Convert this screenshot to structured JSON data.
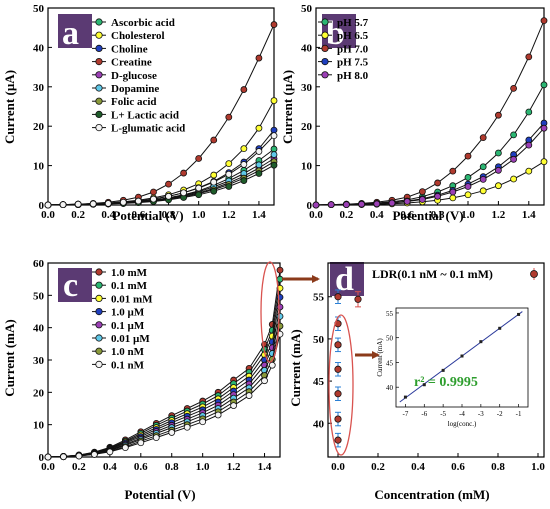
{
  "colors": {
    "panel_letter_bg": "#5b3a73",
    "ellipse": "#d9534f",
    "arrow": "#8b3a1a",
    "fit_line": "#2b3a9b",
    "r2_text": "#2e9e2e"
  },
  "chart_data": [
    {
      "panel": "a",
      "type": "line",
      "xlabel": "Potential (V)",
      "ylabel": "Current (µA)",
      "xlim": [
        0.0,
        1.5
      ],
      "ylim": [
        0,
        50
      ],
      "xticks": [
        "0.0",
        "0.2",
        "0.4",
        "0.6",
        "0.8",
        "1.0",
        "1.2",
        "1.4"
      ],
      "yticks": [
        "0",
        "10",
        "20",
        "30",
        "40",
        "50"
      ],
      "legend_position": "top-left",
      "x": [
        0.0,
        0.1,
        0.2,
        0.3,
        0.4,
        0.5,
        0.6,
        0.7,
        0.8,
        0.9,
        1.0,
        1.1,
        1.2,
        1.3,
        1.4,
        1.5
      ],
      "series": [
        {
          "name": "Ascorbic acid",
          "color": "#2bb673",
          "values": [
            0,
            0.1,
            0.1,
            0.2,
            0.3,
            0.5,
            0.8,
            1.2,
            1.8,
            2.6,
            3.6,
            5.0,
            6.7,
            8.8,
            11.3,
            14.2
          ]
        },
        {
          "name": "Cholesterol",
          "color": "#ffff33",
          "values": [
            0,
            0.1,
            0.2,
            0.3,
            0.5,
            0.8,
            1.2,
            1.8,
            2.6,
            3.8,
            5.4,
            7.6,
            10.5,
            14.3,
            19.5,
            26.5
          ]
        },
        {
          "name": "Choline",
          "color": "#1f3fbf",
          "values": [
            0,
            0.1,
            0.2,
            0.3,
            0.4,
            0.6,
            1.0,
            1.5,
            2.2,
            3.1,
            4.4,
            6.0,
            8.2,
            10.9,
            14.3,
            19.0
          ]
        },
        {
          "name": "Creatine",
          "color": "#b03a2e",
          "values": [
            0,
            0.1,
            0.2,
            0.4,
            0.7,
            1.2,
            2.0,
            3.3,
            5.3,
            8.1,
            11.8,
            16.5,
            22.3,
            29.3,
            37.3,
            45.8
          ]
        },
        {
          "name": "D-glucose",
          "color": "#9b3fb5",
          "values": [
            0,
            0.1,
            0.1,
            0.2,
            0.3,
            0.5,
            0.8,
            1.1,
            1.6,
            2.3,
            3.1,
            4.2,
            5.6,
            7.3,
            9.4,
            11.8
          ]
        },
        {
          "name": "Dopamine",
          "color": "#5fc8e8",
          "values": [
            0,
            0.1,
            0.1,
            0.2,
            0.3,
            0.5,
            0.8,
            1.2,
            1.8,
            2.5,
            3.4,
            4.6,
            6.1,
            8.0,
            10.2,
            12.8
          ]
        },
        {
          "name": "Folic acid",
          "color": "#8a9a3a",
          "values": [
            0,
            0.1,
            0.1,
            0.2,
            0.3,
            0.4,
            0.7,
            1.0,
            1.5,
            2.1,
            2.9,
            3.9,
            5.2,
            6.8,
            8.7,
            11.0
          ]
        },
        {
          "name": "L+ Lactic acid",
          "color": "#1e5c2a",
          "values": [
            0,
            0.1,
            0.1,
            0.2,
            0.3,
            0.4,
            0.6,
            0.9,
            1.3,
            1.9,
            2.6,
            3.5,
            4.7,
            6.2,
            8.0,
            10.1
          ]
        },
        {
          "name": "L-glumatic acid",
          "color": "#f4f4f4",
          "values": [
            0,
            0.1,
            0.2,
            0.3,
            0.4,
            0.7,
            1.0,
            1.5,
            2.2,
            3.1,
            4.3,
            5.8,
            7.8,
            10.3,
            13.6,
            17.6
          ]
        }
      ]
    },
    {
      "panel": "b",
      "type": "line",
      "xlabel": "Potential (V)",
      "ylabel": "Current (µA)",
      "xlim": [
        0.0,
        1.5
      ],
      "ylim": [
        0,
        50
      ],
      "xticks": [
        "0.0",
        "0.2",
        "0.4",
        "0.6",
        "0.8",
        "1.0",
        "1.2",
        "1.4"
      ],
      "yticks": [
        "0",
        "10",
        "20",
        "30",
        "40",
        "50"
      ],
      "legend_position": "top-left",
      "x": [
        0.0,
        0.1,
        0.2,
        0.3,
        0.4,
        0.5,
        0.6,
        0.7,
        0.8,
        0.9,
        1.0,
        1.1,
        1.2,
        1.3,
        1.4,
        1.5
      ],
      "series": [
        {
          "name": "pH 5.7",
          "color": "#2bb673",
          "values": [
            0,
            0.1,
            0.2,
            0.3,
            0.5,
            0.8,
            1.3,
            2.1,
            3.3,
            4.9,
            7.0,
            9.7,
            13.2,
            17.8,
            23.6,
            30.5
          ]
        },
        {
          "name": "pH 6.5",
          "color": "#ffff33",
          "values": [
            0,
            0.1,
            0.1,
            0.1,
            0.2,
            0.3,
            0.5,
            0.8,
            1.2,
            1.8,
            2.6,
            3.6,
            4.9,
            6.6,
            8.6,
            11.0
          ]
        },
        {
          "name": "pH 7.0",
          "color": "#b03a2e",
          "values": [
            0,
            0.1,
            0.2,
            0.4,
            0.7,
            1.2,
            2.0,
            3.4,
            5.6,
            8.6,
            12.4,
            17.1,
            22.8,
            29.6,
            37.6,
            46.8
          ]
        },
        {
          "name": "pH 7.5",
          "color": "#1f3fbf",
          "values": [
            0,
            0.1,
            0.1,
            0.2,
            0.4,
            0.6,
            1.0,
            1.6,
            2.5,
            3.7,
            5.3,
            7.2,
            9.7,
            12.8,
            16.5,
            20.8
          ]
        },
        {
          "name": "pH 8.0",
          "color": "#9b3fb5",
          "values": [
            0,
            0.1,
            0.1,
            0.2,
            0.3,
            0.5,
            0.9,
            1.4,
            2.2,
            3.3,
            4.7,
            6.5,
            8.8,
            11.6,
            15.2,
            19.5
          ]
        }
      ]
    },
    {
      "panel": "c",
      "type": "line",
      "xlabel": "Potential (V)",
      "ylabel": "Current (mA)",
      "xlim": [
        0.0,
        1.5
      ],
      "ylim": [
        0,
        60
      ],
      "xticks": [
        "0.0",
        "0.2",
        "0.4",
        "0.6",
        "0.8",
        "1.0",
        "1.2",
        "1.4"
      ],
      "yticks": [
        "0",
        "10",
        "20",
        "30",
        "40",
        "50",
        "60"
      ],
      "legend_position": "top-left",
      "x": [
        0.0,
        0.1,
        0.2,
        0.3,
        0.4,
        0.5,
        0.6,
        0.7,
        0.8,
        0.9,
        1.0,
        1.1,
        1.2,
        1.3,
        1.4,
        1.45,
        1.5
      ],
      "series": [
        {
          "name": "1.0 mM",
          "color": "#b03a2e",
          "values": [
            0,
            0.2,
            0.6,
            1.5,
            3.0,
            5.3,
            7.8,
            10.4,
            12.8,
            15.0,
            17.3,
            20.0,
            23.8,
            27.4,
            34.8,
            41.0,
            57.8
          ]
        },
        {
          "name": "0.1 mM",
          "color": "#2bb673",
          "values": [
            0,
            0.2,
            0.6,
            1.4,
            2.8,
            4.9,
            7.3,
            9.8,
            12.0,
            14.2,
            16.4,
            19.0,
            22.7,
            26.2,
            33.2,
            39.2,
            55.0
          ]
        },
        {
          "name": "0.01 mM",
          "color": "#ffff33",
          "values": [
            0,
            0.2,
            0.5,
            1.3,
            2.6,
            4.6,
            6.8,
            9.1,
            11.3,
            13.4,
            15.5,
            18.0,
            21.5,
            25.0,
            31.6,
            37.4,
            52.2
          ]
        },
        {
          "name": "1.0 µM",
          "color": "#1f3fbf",
          "values": [
            0,
            0.2,
            0.5,
            1.2,
            2.4,
            4.3,
            6.3,
            8.5,
            10.6,
            12.6,
            14.6,
            17.0,
            20.4,
            23.8,
            30.0,
            35.6,
            49.4
          ]
        },
        {
          "name": "0.1 µM",
          "color": "#9b3fb5",
          "values": [
            0,
            0.1,
            0.4,
            1.1,
            2.2,
            3.9,
            5.8,
            7.9,
            9.8,
            11.7,
            13.7,
            16.0,
            19.3,
            22.6,
            28.4,
            33.8,
            46.4
          ]
        },
        {
          "name": "0.01 µM",
          "color": "#5fc8e8",
          "values": [
            0,
            0.1,
            0.4,
            1.0,
            2.0,
            3.6,
            5.4,
            7.3,
            9.1,
            10.9,
            12.8,
            15.0,
            18.2,
            21.4,
            26.8,
            32.0,
            43.5
          ]
        },
        {
          "name": "1.0 nM",
          "color": "#8a9a3a",
          "values": [
            0,
            0.1,
            0.3,
            0.9,
            1.8,
            3.2,
            4.9,
            6.6,
            8.3,
            10.0,
            11.8,
            14.0,
            17.0,
            20.2,
            25.2,
            30.2,
            40.5
          ]
        },
        {
          "name": "0.1 nM",
          "color": "#f4f4f4",
          "values": [
            0,
            0.1,
            0.3,
            0.8,
            1.6,
            2.9,
            4.4,
            6.0,
            7.6,
            9.2,
            10.9,
            13.0,
            15.9,
            19.0,
            23.6,
            28.4,
            38.0
          ]
        }
      ]
    },
    {
      "panel": "d",
      "type": "scatter",
      "xlabel": "Concentration (mM)",
      "ylabel": "Current (mA)",
      "xlim": [
        -0.05,
        1.03
      ],
      "ylim": [
        36,
        59
      ],
      "xticks": [
        "0.0",
        "0.2",
        "0.4",
        "0.6",
        "0.8",
        "1.0"
      ],
      "yticks": [
        "40",
        "45",
        "50",
        "55"
      ],
      "legend_position": "top",
      "legend_label": "LDR(0.1 nM ~ 0.1 mM)",
      "series": [
        {
          "name": "LDR(0.1 nM ~ 0.1 mM)",
          "color": "#b03a2e",
          "x": [
            0.0,
            0.0,
            0.0,
            0.0,
            0.0,
            0.0,
            0.0,
            0.1
          ],
          "y": [
            38.0,
            40.5,
            43.5,
            46.4,
            49.3,
            51.8,
            55.0,
            54.7
          ],
          "err": [
            0.8,
            0.8,
            0.8,
            0.8,
            0.8,
            0.8,
            0.8,
            0.9
          ]
        }
      ],
      "inset": {
        "type": "scatter",
        "xlabel": "log(conc.)",
        "ylabel": "Current (mA)",
        "xlim": [
          -7.5,
          -0.5
        ],
        "ylim": [
          36,
          56
        ],
        "xticks": [
          "-7",
          "-6",
          "-5",
          "-4",
          "-3",
          "-2",
          "-1"
        ],
        "yticks": [
          "40",
          "45",
          "50",
          "55"
        ],
        "x": [
          -7,
          -6,
          -5,
          -4,
          -3,
          -2,
          -1
        ],
        "y": [
          38.0,
          40.5,
          43.4,
          46.3,
          49.2,
          51.9,
          54.7
        ],
        "annotation": "r² = 0.9995"
      }
    }
  ]
}
